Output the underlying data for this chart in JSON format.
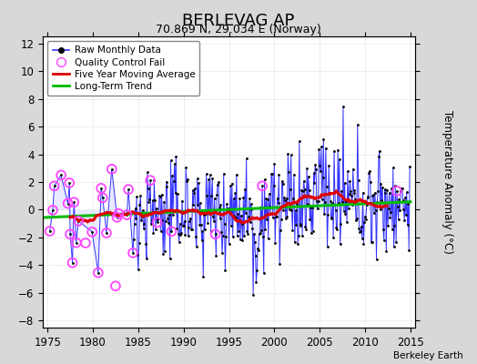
{
  "title": "BERLEVAG AP",
  "subtitle": "70.869 N, 29.034 E (Norway)",
  "ylabel": "Temperature Anomaly (°C)",
  "attribution": "Berkeley Earth",
  "xlim": [
    1974.5,
    2015.5
  ],
  "ylim": [
    -8.5,
    12.5
  ],
  "yticks": [
    -8,
    -6,
    -4,
    -2,
    0,
    2,
    4,
    6,
    8,
    10,
    12
  ],
  "xticks": [
    1975,
    1980,
    1985,
    1990,
    1995,
    2000,
    2005,
    2010,
    2015
  ],
  "fig_bg_color": "#d8d8d8",
  "plot_bg_color": "#ffffff",
  "raw_line_color": "#3333ff",
  "raw_fill_color": "#aaaaff",
  "raw_dot_color": "#000000",
  "qc_fail_color": "#ff44ff",
  "moving_avg_color": "#dd0000",
  "trend_color": "#00bb00",
  "trend_slope": 0.028,
  "trend_intercept": -0.55,
  "seed": 12345
}
